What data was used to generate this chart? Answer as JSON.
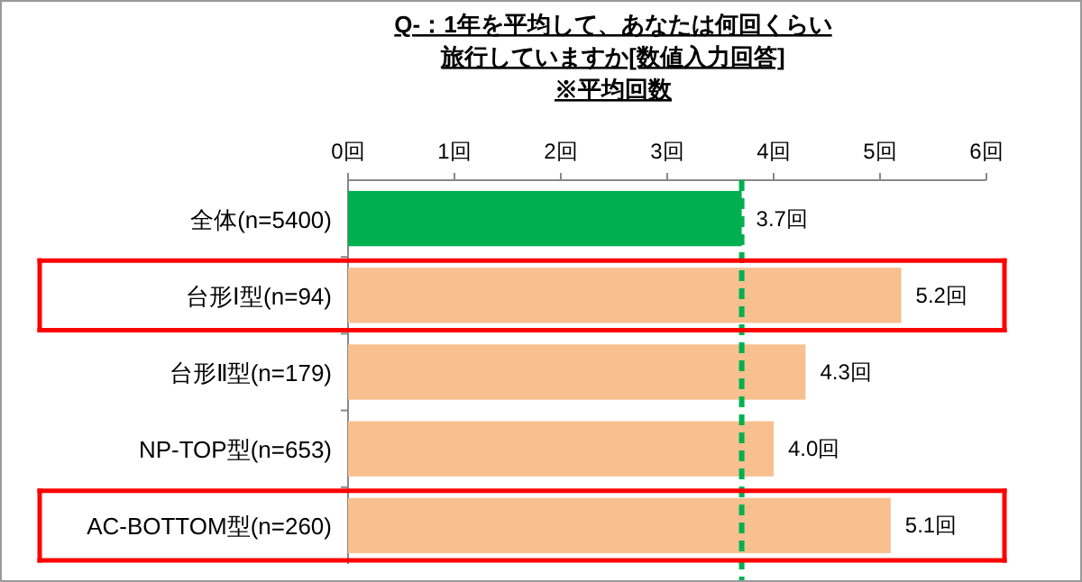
{
  "chart_data": {
    "type": "bar",
    "orientation": "horizontal",
    "title": "Q-：1年を平均して、あなたは何回くらい旅行していますか[数値入力回答]",
    "subtitle": "※平均回数",
    "categories": [
      "全体(n=5400)",
      "台形Ⅰ型(n=94)",
      "台形Ⅱ型(n=179)",
      "NP-TOP型(n=653)",
      "AC-BOTTOM型(n=260)"
    ],
    "values": [
      3.7,
      5.2,
      4.3,
      4.0,
      5.1
    ],
    "colors": [
      "#00b050",
      "#f8c08f",
      "#f8c08f",
      "#f8c08f",
      "#f8c08f"
    ],
    "value_labels": [
      "3.7回",
      "5.2回",
      "4.3回",
      "4.0回",
      "5.1回"
    ],
    "xlim": [
      0,
      6
    ],
    "xticks": [
      {
        "value": 0,
        "label": "0回"
      },
      {
        "value": 1,
        "label": "1回"
      },
      {
        "value": 2,
        "label": "2回"
      },
      {
        "value": 3,
        "label": "3回"
      },
      {
        "value": 4,
        "label": "4回"
      },
      {
        "value": 5,
        "label": "5回"
      },
      {
        "value": 6,
        "label": "6回"
      }
    ],
    "ref_lines": [
      {
        "axis": "x",
        "value": 3.7,
        "color": "#00b050",
        "line_style": "dashed"
      }
    ]
  }
}
